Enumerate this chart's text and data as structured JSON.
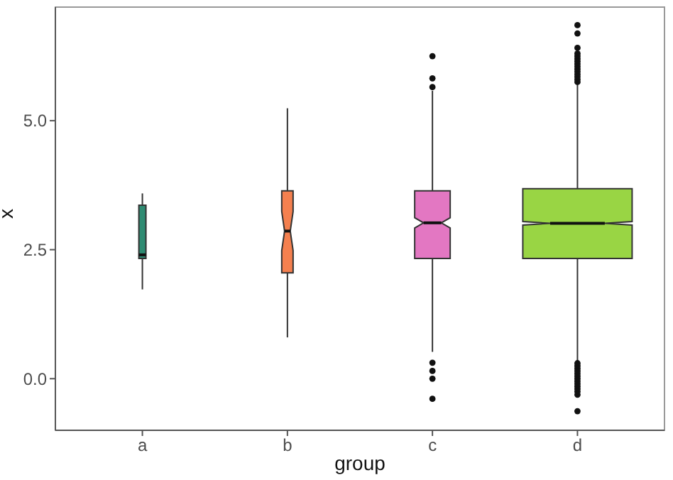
{
  "chart_data": {
    "type": "box",
    "xlabel": "group",
    "ylabel": "x",
    "categories": [
      "a",
      "b",
      "c",
      "d"
    ],
    "colors": [
      "#2e8b72",
      "#f4804f",
      "#e377c2",
      "#99d544"
    ],
    "boxes": [
      {
        "low": 1.73,
        "q1": 2.33,
        "median": 2.4,
        "q3": 3.36,
        "high": 3.59
      },
      {
        "low": 0.8,
        "q1": 2.05,
        "median": 2.86,
        "q3": 3.64,
        "high": 5.24
      },
      {
        "low": 0.52,
        "q1": 2.33,
        "median": 3.02,
        "q3": 3.64,
        "high": 5.58,
        "outliers": [
          6.25,
          5.82,
          5.65,
          0.31,
          0.15,
          0.0,
          -0.39
        ]
      },
      {
        "low": 0.33,
        "q1": 2.33,
        "median": 3.01,
        "q3": 3.68,
        "high": 5.7,
        "outliers": [
          6.85,
          6.69,
          6.41,
          6.3,
          6.25,
          6.2,
          6.15,
          6.1,
          6.05,
          6.0,
          5.95,
          5.9,
          5.85,
          5.8,
          5.75,
          0.3,
          0.25,
          0.2,
          0.15,
          0.1,
          0.05,
          0.0,
          -0.05,
          -0.1,
          -0.15,
          -0.2,
          -0.25,
          -0.31,
          -0.63
        ]
      }
    ],
    "ylim": [
      -1.0,
      7.2
    ],
    "yticks": [
      {
        "value": 0,
        "label": "0.0"
      },
      {
        "value": 2.5,
        "label": "2.5"
      },
      {
        "value": 5,
        "label": "5.0"
      }
    ],
    "grid": false,
    "legend": false
  }
}
